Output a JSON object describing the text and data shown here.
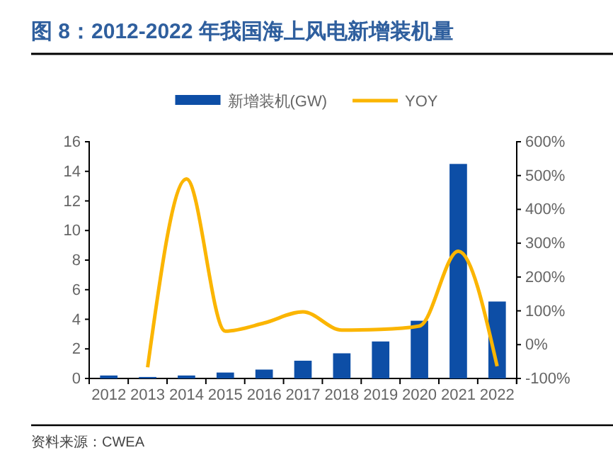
{
  "chart_data": {
    "type": "bar",
    "title": "图 8：2012-2022 年我国海上风电新增装机量",
    "categories": [
      "2012",
      "2013",
      "2014",
      "2015",
      "2016",
      "2017",
      "2018",
      "2019",
      "2020",
      "2021",
      "2022"
    ],
    "series": [
      {
        "name": "新增装机(GW)",
        "color": "#0d4ea6",
        "values": [
          0.2,
          0.1,
          0.2,
          0.4,
          0.6,
          1.2,
          1.7,
          2.5,
          3.9,
          14.5,
          5.2
        ]
      },
      {
        "name": "YOY",
        "type": "line",
        "axis": "y2",
        "color": "#fbb500",
        "values": [
          null,
          -67,
          490,
          40,
          64,
          97,
          43,
          45,
          55,
          276,
          -64
        ]
      }
    ],
    "ylim": [
      0,
      16
    ],
    "yticks": [
      0,
      2,
      4,
      6,
      8,
      10,
      12,
      14,
      16
    ],
    "y2lim": [
      -100,
      600
    ],
    "y2ticks": [
      {
        "value": -100,
        "label": "-100%"
      },
      {
        "value": 0,
        "label": "0%"
      },
      {
        "value": 100,
        "label": "100%"
      },
      {
        "value": 200,
        "label": "200%"
      },
      {
        "value": 300,
        "label": "300%"
      },
      {
        "value": 400,
        "label": "400%"
      },
      {
        "value": 500,
        "label": "500%"
      },
      {
        "value": 600,
        "label": "600%"
      }
    ],
    "legend": "top",
    "grid": false,
    "marker": "none",
    "annotations": [
      "资料来源：CWEA"
    ]
  }
}
